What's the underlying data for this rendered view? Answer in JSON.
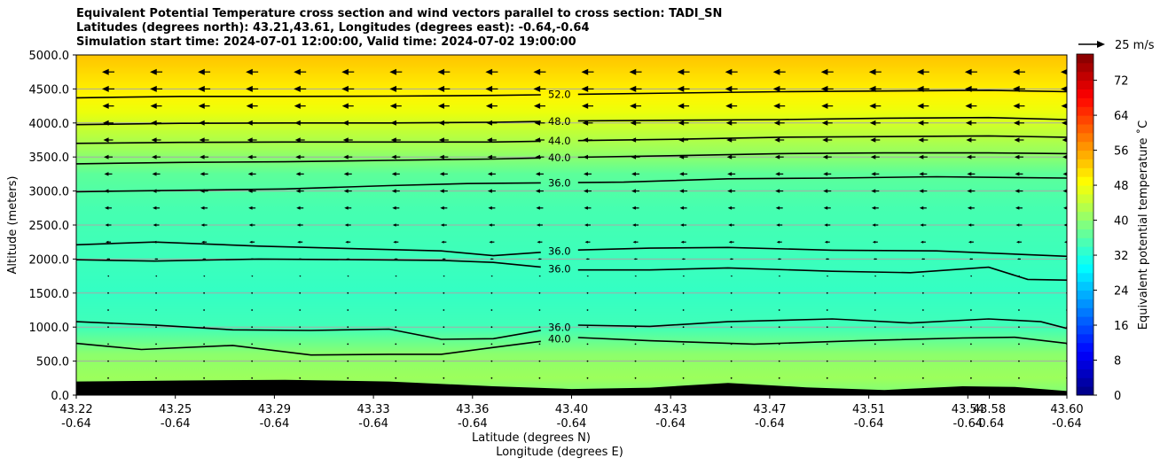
{
  "chart_data": {
    "type": "contourf",
    "title_lines": [
      "Equivalent Potential Temperature cross section and wind vectors parallel to cross section: TADI_SN",
      "Latitudes (degrees north): 43.21,43.61, Longitudes (degrees east): -0.64,-0.64",
      "Simulation start time: 2024-07-01 12:00:00, Valid time: 2024-07-02 19:00:00"
    ],
    "ylabel": "Altitude (meters)",
    "xlabel_1": "Latitude (degrees N)",
    "xlabel_2": "Longitude (degrees E)",
    "xlim": [
      43.22,
      43.6
    ],
    "ylim": [
      0,
      5000
    ],
    "grid": "horizontal",
    "x_ticks": [
      {
        "lat": "43.22",
        "lon": "-0.64"
      },
      {
        "lat": "43.25",
        "lon": "-0.64"
      },
      {
        "lat": "43.29",
        "lon": "-0.64"
      },
      {
        "lat": "43.33",
        "lon": "-0.64"
      },
      {
        "lat": "43.36",
        "lon": "-0.64"
      },
      {
        "lat": "43.40",
        "lon": "-0.64"
      },
      {
        "lat": "43.43",
        "lon": "-0.64"
      },
      {
        "lat": "43.47",
        "lon": "-0.64"
      },
      {
        "lat": "43.51",
        "lon": "-0.64"
      },
      {
        "lat": "43.54",
        "lon": "-0.64"
      },
      {
        "lat": "43.58",
        "lon": "-0.64"
      },
      {
        "lat": "43.60",
        "lon": "-0.64"
      }
    ],
    "y_ticks": [
      "0.0",
      "500.0",
      "1000.0",
      "1500.0",
      "2000.0",
      "2500.0",
      "3000.0",
      "3500.0",
      "4000.0",
      "4500.0",
      "5000.0"
    ],
    "colorbar": {
      "label": "Equivalent potential temperature $^\\circ$C",
      "label_text": "Equivalent potential temperature ˚C",
      "range": [
        0,
        78
      ],
      "ticks": [
        "0",
        "8",
        "16",
        "24",
        "32",
        "40",
        "48",
        "56",
        "64",
        "72"
      ],
      "colormap": "jet"
    },
    "quiver_key": {
      "label": "25 m/s"
    },
    "terrain_profile": {
      "x": [
        43.22,
        43.26,
        43.3,
        43.34,
        43.38,
        43.41,
        43.44,
        43.47,
        43.5,
        43.53,
        43.56,
        43.58,
        43.6
      ],
      "y": [
        200,
        215,
        225,
        200,
        130,
        90,
        110,
        180,
        115,
        75,
        130,
        120,
        60
      ]
    },
    "contours": [
      {
        "label": "52.0",
        "x": [
          43.22,
          43.26,
          43.3,
          43.34,
          43.38,
          43.41,
          43.45,
          43.49,
          43.53,
          43.57,
          43.6
        ],
        "y": [
          4370,
          4390,
          4390,
          4395,
          4405,
          4420,
          4440,
          4460,
          4470,
          4480,
          4460
        ]
      },
      {
        "label": "48.0",
        "x": [
          43.22,
          43.26,
          43.3,
          43.34,
          43.38,
          43.41,
          43.45,
          43.49,
          43.53,
          43.57,
          43.6
        ],
        "y": [
          3975,
          3995,
          4000,
          4000,
          4010,
          4030,
          4040,
          4050,
          4070,
          4080,
          4050
        ]
      },
      {
        "label": "44.0",
        "x": [
          43.22,
          43.26,
          43.3,
          43.34,
          43.38,
          43.41,
          43.45,
          43.49,
          43.53,
          43.57,
          43.6
        ],
        "y": [
          3700,
          3715,
          3720,
          3720,
          3720,
          3740,
          3760,
          3790,
          3800,
          3810,
          3790
        ]
      },
      {
        "label": "40.0",
        "x": [
          43.22,
          43.26,
          43.3,
          43.34,
          43.38,
          43.41,
          43.45,
          43.49,
          43.53,
          43.57,
          43.6
        ],
        "y": [
          3400,
          3420,
          3430,
          3450,
          3470,
          3495,
          3520,
          3550,
          3560,
          3560,
          3550
        ]
      },
      {
        "label": "36.0",
        "x": [
          43.22,
          43.26,
          43.3,
          43.34,
          43.37,
          43.4,
          43.43,
          43.47,
          43.51,
          43.55,
          43.6
        ],
        "y": [
          2990,
          3010,
          3030,
          3080,
          3110,
          3120,
          3130,
          3180,
          3190,
          3210,
          3190
        ]
      },
      {
        "label": "36.0",
        "x": [
          43.22,
          43.25,
          43.29,
          43.33,
          43.36,
          43.38,
          43.41,
          43.44,
          43.47,
          43.51,
          43.55,
          43.6
        ],
        "y": [
          2210,
          2250,
          2190,
          2150,
          2120,
          2050,
          2130,
          2160,
          2170,
          2130,
          2120,
          2040
        ]
      },
      {
        "label": "36.0",
        "x": [
          43.22,
          43.25,
          43.29,
          43.33,
          43.36,
          43.38,
          43.41,
          43.44,
          43.47,
          43.51,
          43.54,
          43.57,
          43.585,
          43.6
        ],
        "y": [
          1990,
          1970,
          2000,
          1990,
          1980,
          1950,
          1840,
          1840,
          1870,
          1820,
          1800,
          1880,
          1700,
          1690
        ]
      },
      {
        "label": "36.0",
        "x": [
          43.22,
          43.25,
          43.28,
          43.31,
          43.34,
          43.36,
          43.38,
          43.41,
          43.44,
          43.47,
          43.51,
          43.54,
          43.57,
          43.59,
          43.6
        ],
        "y": [
          1080,
          1030,
          960,
          950,
          970,
          820,
          830,
          1030,
          1010,
          1080,
          1120,
          1060,
          1120,
          1080,
          980
        ]
      },
      {
        "label": "40.0",
        "x": [
          43.22,
          43.245,
          43.28,
          43.31,
          43.34,
          43.36,
          43.38,
          43.41,
          43.44,
          43.48,
          43.52,
          43.56,
          43.58,
          43.6
        ],
        "y": [
          760,
          670,
          730,
          590,
          600,
          600,
          700,
          850,
          800,
          750,
          800,
          840,
          850,
          760
        ]
      }
    ],
    "wind_vectors": {
      "direction": "northward-negative (pointing left, toward south)",
      "rows": [
        {
          "z": 4750,
          "u": -14
        },
        {
          "z": 4500,
          "u": -14
        },
        {
          "z": 4250,
          "u": -13
        },
        {
          "z": 4000,
          "u": -12
        },
        {
          "z": 3750,
          "u": -11
        },
        {
          "z": 3500,
          "u": -10
        },
        {
          "z": 3250,
          "u": -9
        },
        {
          "z": 3000,
          "u": -9
        },
        {
          "z": 2750,
          "u": -8
        },
        {
          "z": 2500,
          "u": -7
        },
        {
          "z": 2250,
          "u": -6
        },
        {
          "z": 2000,
          "u": -4
        },
        {
          "z": 1750,
          "u": -2
        },
        {
          "z": 1500,
          "u": -1
        },
        {
          "z": 1250,
          "u": -1
        },
        {
          "z": 1000,
          "u": -1
        },
        {
          "z": 750,
          "u": -1
        },
        {
          "z": 500,
          "u": -1
        },
        {
          "z": 250,
          "u": -1
        }
      ]
    }
  }
}
